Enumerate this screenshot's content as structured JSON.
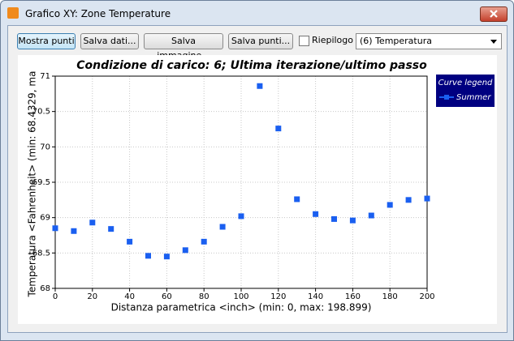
{
  "window": {
    "title": "Grafico XY: Zone Temperature"
  },
  "toolbar": {
    "buttons": [
      "Mostra punti",
      "Salva dati...",
      "Salva immagine...",
      "Salva punti..."
    ],
    "checkbox": "Riepilogo",
    "dropdown": "(6) Temperatura"
  },
  "chart_data": {
    "type": "line",
    "title": "Condizione di carico: 6; Ultima iterazione/ultimo passo",
    "x_label": "Distanza parametrica <inch> (min: 0, max: 198.899)",
    "y_label": "Temperatura <Fahrenheit> (min: 68.4329, ma",
    "legend_title": "Curve legend",
    "x": [
      0,
      10,
      20,
      30,
      40,
      50,
      60,
      70,
      80,
      90,
      100,
      110,
      120,
      130,
      140,
      150,
      160,
      170,
      180,
      190,
      200
    ],
    "series": [
      {
        "name": "Summer",
        "color": "#1a5ff0",
        "values": [
          68.85,
          68.81,
          68.93,
          68.84,
          68.66,
          68.46,
          68.45,
          68.54,
          68.66,
          68.87,
          69.02,
          70.86,
          70.26,
          69.26,
          69.05,
          68.98,
          68.96,
          69.03,
          69.18,
          69.25,
          69.27
        ]
      }
    ],
    "xlim": [
      0,
      200
    ],
    "xticks": [
      0,
      20,
      40,
      60,
      80,
      100,
      120,
      140,
      160,
      180,
      200
    ],
    "ylim": [
      68,
      71
    ],
    "yticks": [
      68,
      68.5,
      69,
      69.5,
      70,
      70.5,
      71
    ],
    "grid": true
  }
}
